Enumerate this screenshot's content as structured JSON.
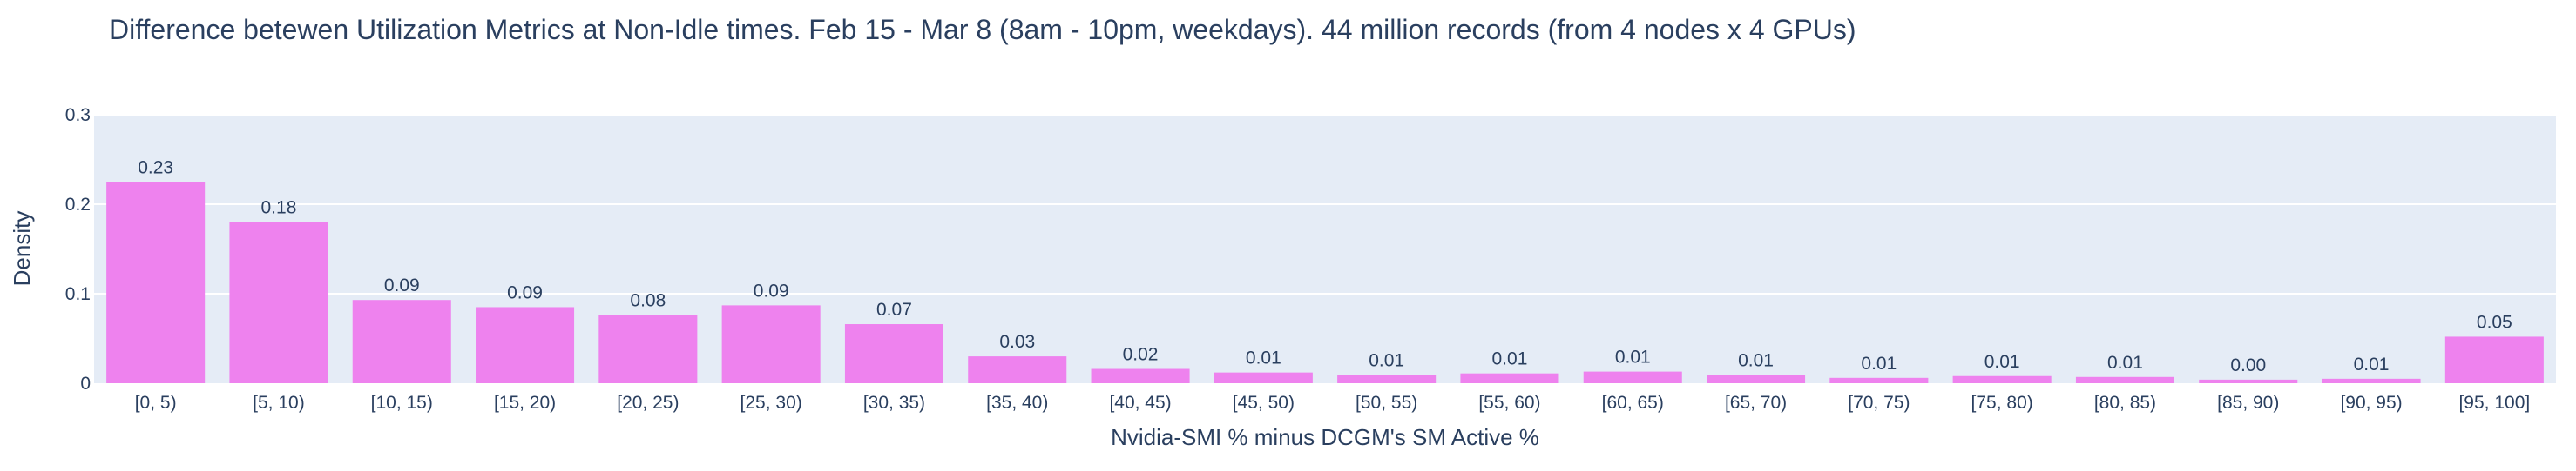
{
  "chart_data": {
    "type": "bar",
    "title": "Difference betewen Utilization Metrics at Non-Idle times. Feb 15 - Mar 8 (8am - 10pm, weekdays). 44 million records (from 4 nodes x 4 GPUs)",
    "xlabel": "Nvidia-SMI % minus DCGM's SM Active %",
    "ylabel": "Density",
    "ylim": [
      0,
      0.3
    ],
    "yticks": [
      "0",
      "0.1",
      "0.2",
      "0.3"
    ],
    "ytick_values": [
      0,
      0.1,
      0.2,
      0.3
    ],
    "grid": true,
    "categories": [
      "[0, 5)",
      "[5, 10)",
      "[10, 15)",
      "[15, 20)",
      "[20, 25)",
      "[25, 30)",
      "[30, 35)",
      "[35, 40)",
      "[40, 45)",
      "[45, 50)",
      "[50, 55)",
      "[55, 60)",
      "[60, 65)",
      "[65, 70)",
      "[70, 75)",
      "[75, 80)",
      "[80, 85)",
      "[85, 90)",
      "[90, 95)",
      "[95, 100]"
    ],
    "values": [
      0.225,
      0.18,
      0.093,
      0.085,
      0.076,
      0.087,
      0.066,
      0.03,
      0.016,
      0.012,
      0.009,
      0.011,
      0.013,
      0.009,
      0.006,
      0.008,
      0.007,
      0.004,
      0.005,
      0.052
    ],
    "labels": [
      "0.23",
      "0.18",
      "0.09",
      "0.09",
      "0.08",
      "0.09",
      "0.07",
      "0.03",
      "0.02",
      "0.01",
      "0.01",
      "0.01",
      "0.01",
      "0.01",
      "0.01",
      "0.01",
      "0.01",
      "0.00",
      "0.01",
      "0.05"
    ],
    "colors": {
      "bar": "#ee82ee",
      "plot_bg": "#e5ecf6",
      "grid": "#ffffff",
      "text": "#2a3f5f"
    }
  }
}
